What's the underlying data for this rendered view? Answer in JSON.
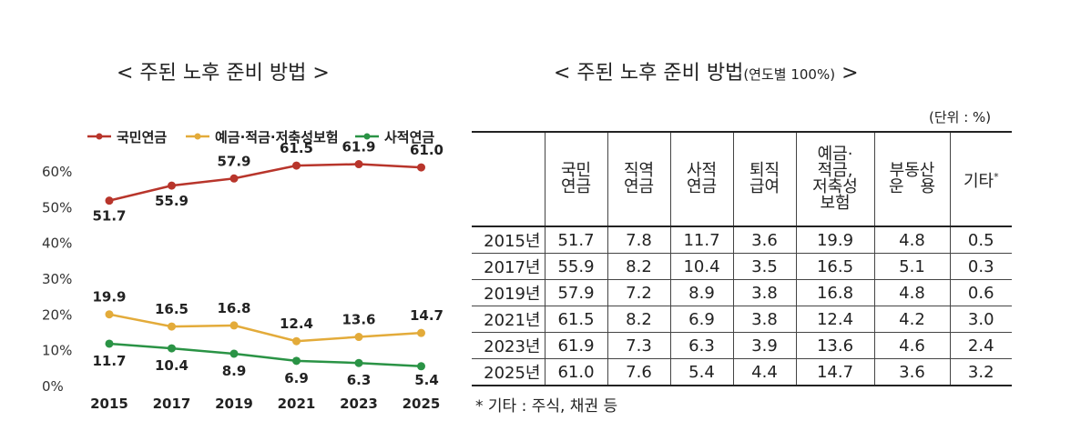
{
  "left_title": "< 주된 노후 준비 방법 >",
  "right_title": {
    "main": "< 주된 노후 준비 방법",
    "sub": "(연도별 100%)",
    "end": " >"
  },
  "unit": "(단위 : %)",
  "note": "* 기타 : 주식, 채권 등",
  "colors": {
    "national_pension": "#b8352b",
    "savings": "#e3ab3a",
    "private_pension": "#2a9345"
  },
  "chart_data": {
    "type": "line",
    "x": [
      "2015",
      "2017",
      "2019",
      "2021",
      "2023",
      "2025"
    ],
    "ylim": [
      0,
      60
    ],
    "yticks": [
      "0%",
      "10%",
      "20%",
      "30%",
      "40%",
      "50%",
      "60%"
    ],
    "legend_position": "top",
    "grid": false,
    "series": [
      {
        "name": "국민연금",
        "values": [
          51.7,
          55.9,
          57.9,
          61.5,
          61.9,
          61.0
        ],
        "labels": [
          "51.7",
          "55.9",
          "57.9",
          "61.5",
          "61.9",
          "61.0"
        ],
        "color": "#b8352b"
      },
      {
        "name": "예금·적금·저축성보험",
        "values": [
          19.9,
          16.5,
          16.8,
          12.4,
          13.6,
          14.7
        ],
        "labels": [
          "19.9",
          "16.5",
          "16.8",
          "12.4",
          "13.6",
          "14.7"
        ],
        "color": "#e3ab3a"
      },
      {
        "name": "사적연금",
        "values": [
          11.7,
          10.4,
          8.9,
          6.9,
          6.3,
          5.4
        ],
        "labels": [
          "11.7",
          "10.4",
          "8.9",
          "6.9",
          "6.3",
          "5.4"
        ],
        "color": "#2a9345"
      }
    ]
  },
  "table": {
    "header_labels": [
      "국민\n연금",
      "직역\n연금",
      "사적\n연금",
      "퇴직\n급여",
      "예금·\n적금,\n저축성\n보험",
      "부동산\n운　용",
      "기타"
    ],
    "other_mark": "*",
    "rows": [
      {
        "year": "2015년",
        "cells": [
          "51.7",
          "7.8",
          "11.7",
          "3.6",
          "19.9",
          "4.8",
          "0.5"
        ]
      },
      {
        "year": "2017년",
        "cells": [
          "55.9",
          "8.2",
          "10.4",
          "3.5",
          "16.5",
          "5.1",
          "0.3"
        ]
      },
      {
        "year": "2019년",
        "cells": [
          "57.9",
          "7.2",
          "8.9",
          "3.8",
          "16.8",
          "4.8",
          "0.6"
        ]
      },
      {
        "year": "2021년",
        "cells": [
          "61.5",
          "8.2",
          "6.9",
          "3.8",
          "12.4",
          "4.2",
          "3.0"
        ]
      },
      {
        "year": "2023년",
        "cells": [
          "61.9",
          "7.3",
          "6.3",
          "3.9",
          "13.6",
          "4.6",
          "2.4"
        ]
      },
      {
        "year": "2025년",
        "cells": [
          "61.0",
          "7.6",
          "5.4",
          "4.4",
          "14.7",
          "3.6",
          "3.2"
        ]
      }
    ]
  }
}
